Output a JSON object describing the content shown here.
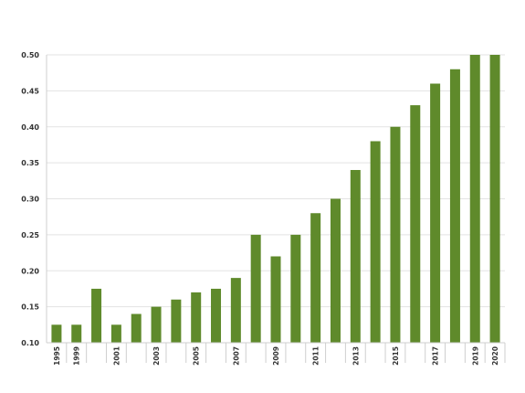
{
  "chart_data": {
    "type": "bar",
    "title": "",
    "xlabel": "",
    "ylabel": "",
    "categories": [
      "1995",
      "1999",
      "",
      "2001",
      "",
      "2003",
      "",
      "2005",
      "",
      "2007",
      "",
      "2009",
      "",
      "2011",
      "",
      "2013",
      "",
      "2015",
      "",
      "2017",
      "",
      "2019",
      "2020"
    ],
    "values": [
      0.125,
      0.125,
      0.175,
      0.125,
      0.14,
      0.15,
      0.16,
      0.17,
      0.175,
      0.19,
      0.25,
      0.22,
      0.25,
      0.28,
      0.3,
      0.34,
      0.38,
      0.4,
      0.43,
      0.46,
      0.48,
      0.5,
      0.5
    ],
    "ylim": [
      0.1,
      0.5
    ],
    "yticks": [
      "0.10",
      "0.15",
      "0.20",
      "0.25",
      "0.30",
      "0.35",
      "0.40",
      "0.45",
      "0.50"
    ],
    "grid": "horizontal",
    "bar_color": "#5f8a2b",
    "grid_color": "#e3e3e3",
    "axis_color": "#cfcfcf",
    "text_color": "#333333"
  }
}
